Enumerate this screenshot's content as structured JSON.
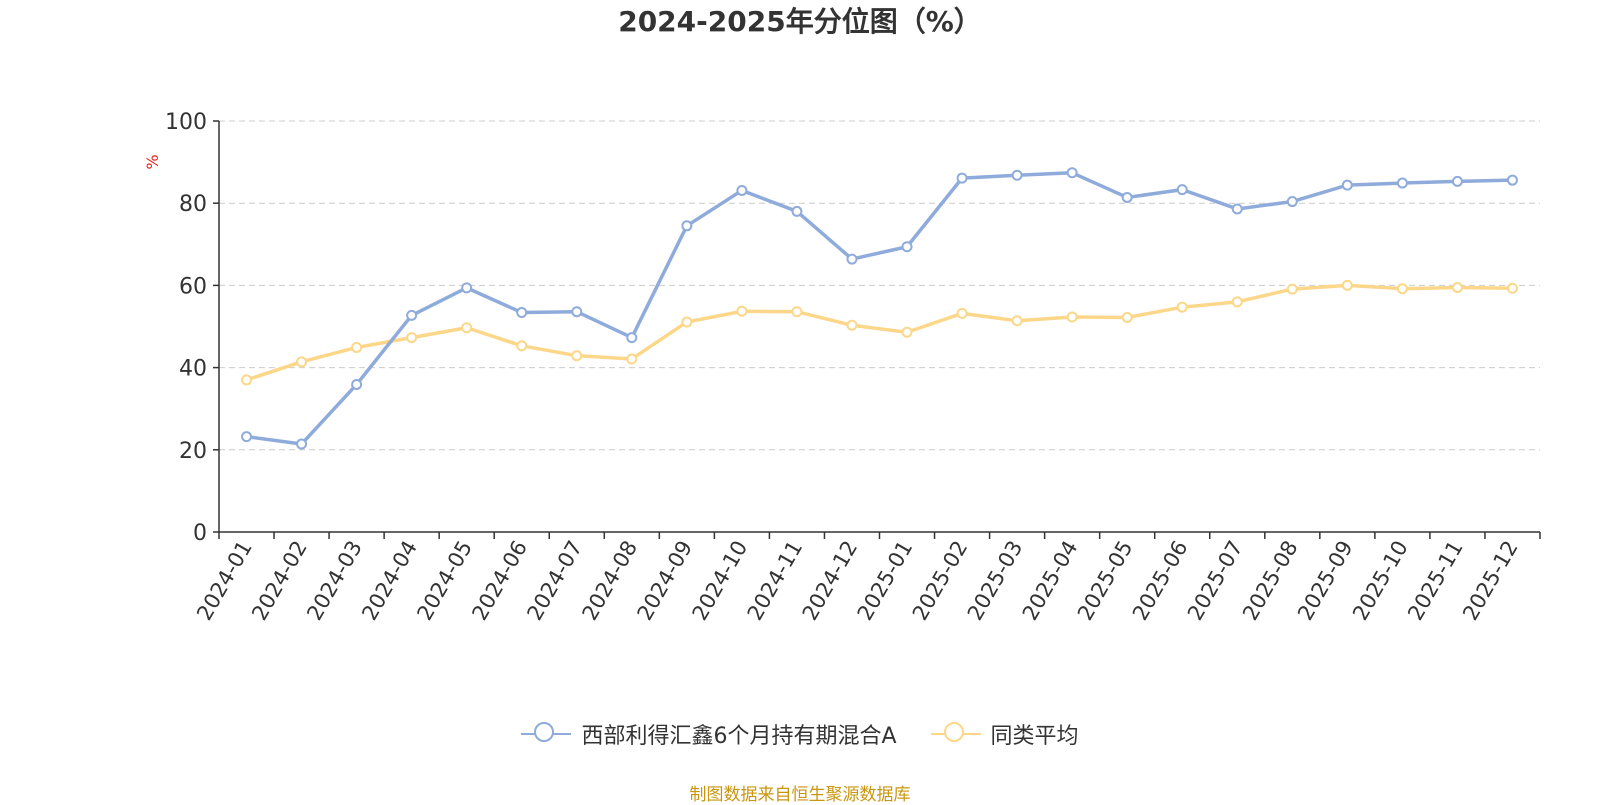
{
  "chart_data": {
    "type": "line",
    "title": "2024-2025年分位图（%）",
    "ylabel": "%",
    "ylim": [
      0,
      100
    ],
    "yticks": [
      0,
      20,
      40,
      60,
      80,
      100
    ],
    "grid": true,
    "legend_position": "bottom",
    "categories": [
      "2024-01",
      "2024-02",
      "2024-03",
      "2024-04",
      "2024-05",
      "2024-06",
      "2024-07",
      "2024-08",
      "2024-09",
      "2024-10",
      "2024-11",
      "2024-12",
      "2025-01",
      "2025-02",
      "2025-03",
      "2025-04",
      "2025-05",
      "2025-06",
      "2025-07",
      "2025-08",
      "2025-09",
      "2025-10",
      "2025-11",
      "2025-12"
    ],
    "series": [
      {
        "name": "西部利得汇鑫6个月持有期混合A",
        "color": "#8eabdb",
        "values": [
          23.2,
          21.4,
          35.9,
          52.7,
          59.4,
          53.4,
          53.6,
          47.3,
          74.5,
          83.1,
          78.0,
          66.4,
          69.4,
          86.1,
          86.8,
          87.4,
          81.4,
          83.3,
          78.6,
          80.4,
          84.4,
          84.9,
          85.3,
          85.6
        ]
      },
      {
        "name": "同类平均",
        "color": "#fcd78a",
        "values": [
          37.0,
          41.4,
          44.9,
          47.3,
          49.7,
          45.3,
          42.9,
          42.1,
          51.1,
          53.7,
          53.6,
          50.3,
          48.6,
          53.2,
          51.4,
          52.3,
          52.2,
          54.7,
          56.0,
          59.1,
          60.0,
          59.2,
          59.5,
          59.3
        ]
      }
    ]
  },
  "source_note": "制图数据来自恒生聚源数据库"
}
